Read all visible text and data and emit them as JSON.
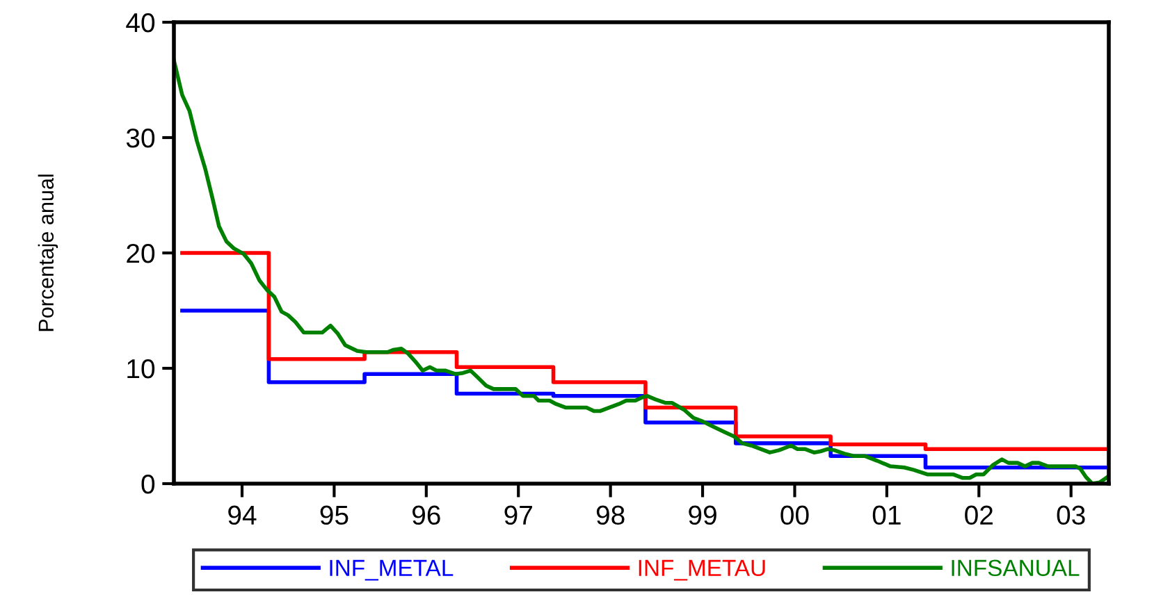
{
  "chart_data": {
    "type": "line",
    "ylabel": "Porcentaje anual",
    "xlim": [
      1993.26,
      2003.41
    ],
    "ylim": [
      0,
      40
    ],
    "yticks": [
      0,
      10,
      20,
      30,
      40
    ],
    "xticks": [
      {
        "value": 1994,
        "label": "94"
      },
      {
        "value": 1995,
        "label": "95"
      },
      {
        "value": 1996,
        "label": "96"
      },
      {
        "value": 1997,
        "label": "97"
      },
      {
        "value": 1998,
        "label": "98"
      },
      {
        "value": 1999,
        "label": "99"
      },
      {
        "value": 2000,
        "label": "00"
      },
      {
        "value": 2001,
        "label": "01"
      },
      {
        "value": 2002,
        "label": "02"
      },
      {
        "value": 2003,
        "label": "03"
      }
    ],
    "grid": false,
    "legend": "bottom",
    "line_style": "solid",
    "series": [
      {
        "name": "INF_METAL",
        "color": "#0000ff",
        "type": "step",
        "x": [
          1993.35,
          1994.29,
          1995.33,
          1996.33,
          1997.38,
          1998.38,
          1999.36,
          2000.39,
          2001.42,
          2003.41
        ],
        "values": [
          15,
          8.8,
          9.5,
          7.8,
          7.6,
          5.3,
          3.5,
          2.4,
          1.4,
          1.4
        ]
      },
      {
        "name": "INF_METAU",
        "color": "#ff0000",
        "type": "step",
        "x": [
          1993.35,
          1994.29,
          1995.33,
          1996.33,
          1997.38,
          1998.38,
          1999.36,
          2000.39,
          2001.42,
          2003.41
        ],
        "values": [
          20,
          10.8,
          11.4,
          10.1,
          8.8,
          6.6,
          4.1,
          3.4,
          3.0,
          3.0
        ]
      },
      {
        "name": "INFSANUAL",
        "color": "#008000",
        "x": [
          1993.26,
          1993.35,
          1993.43,
          1993.51,
          1993.6,
          1993.68,
          1993.75,
          1993.83,
          1993.91,
          1994.02,
          1994.1,
          1994.19,
          1994.27,
          1994.35,
          1994.43,
          1994.5,
          1994.58,
          1994.67,
          1994.77,
          1994.87,
          1994.96,
          1995.04,
          1995.12,
          1995.25,
          1995.35,
          1995.45,
          1995.58,
          1995.64,
          1995.73,
          1995.8,
          1995.88,
          1995.96,
          1996.04,
          1996.11,
          1996.21,
          1996.32,
          1996.4,
          1996.48,
          1996.56,
          1996.65,
          1996.73,
          1996.86,
          1996.97,
          1997.05,
          1997.17,
          1997.22,
          1997.34,
          1997.41,
          1997.51,
          1997.74,
          1997.82,
          1997.89,
          1997.99,
          1998.09,
          1998.17,
          1998.27,
          1998.35,
          1998.4,
          1998.49,
          1998.6,
          1998.67,
          1998.8,
          1998.9,
          1999.0,
          1999.1,
          1999.23,
          1999.34,
          1999.43,
          1999.53,
          1999.63,
          1999.73,
          1999.83,
          1999.96,
          2000.03,
          2000.11,
          2000.21,
          2000.28,
          2000.36,
          2000.43,
          2000.54,
          2000.64,
          2000.76,
          2000.89,
          2001.04,
          2001.19,
          2001.29,
          2001.44,
          2001.72,
          2001.82,
          2001.9,
          2001.97,
          2002.05,
          2002.15,
          2002.25,
          2002.32,
          2002.42,
          2002.5,
          2002.58,
          2002.65,
          2002.75,
          2002.98,
          2003.05,
          2003.1,
          2003.16,
          2003.23,
          2003.31,
          2003.4
        ],
        "values": [
          36.7,
          33.7,
          32.3,
          29.7,
          27.3,
          24.7,
          22.3,
          21.0,
          20.4,
          19.9,
          19.1,
          17.6,
          16.8,
          16.2,
          14.9,
          14.6,
          14.0,
          13.1,
          13.1,
          13.1,
          13.7,
          13.0,
          12.0,
          11.5,
          11.4,
          11.4,
          11.4,
          11.6,
          11.7,
          11.3,
          10.6,
          9.8,
          10.1,
          9.8,
          9.8,
          9.5,
          9.6,
          9.8,
          9.2,
          8.5,
          8.2,
          8.2,
          8.2,
          7.6,
          7.6,
          7.2,
          7.2,
          6.9,
          6.6,
          6.6,
          6.3,
          6.3,
          6.6,
          6.9,
          7.2,
          7.2,
          7.5,
          7.6,
          7.3,
          7.0,
          7.0,
          6.4,
          5.7,
          5.4,
          5.0,
          4.5,
          4.1,
          3.5,
          3.3,
          3.0,
          2.7,
          2.9,
          3.3,
          3.0,
          3.0,
          2.7,
          2.8,
          3.0,
          2.9,
          2.6,
          2.4,
          2.4,
          2.0,
          1.5,
          1.4,
          1.2,
          0.8,
          0.8,
          0.5,
          0.5,
          0.8,
          0.8,
          1.6,
          2.1,
          1.8,
          1.8,
          1.5,
          1.8,
          1.8,
          1.5,
          1.5,
          1.5,
          1.3,
          0.6,
          0.0,
          0.1,
          0.6
        ]
      }
    ]
  }
}
